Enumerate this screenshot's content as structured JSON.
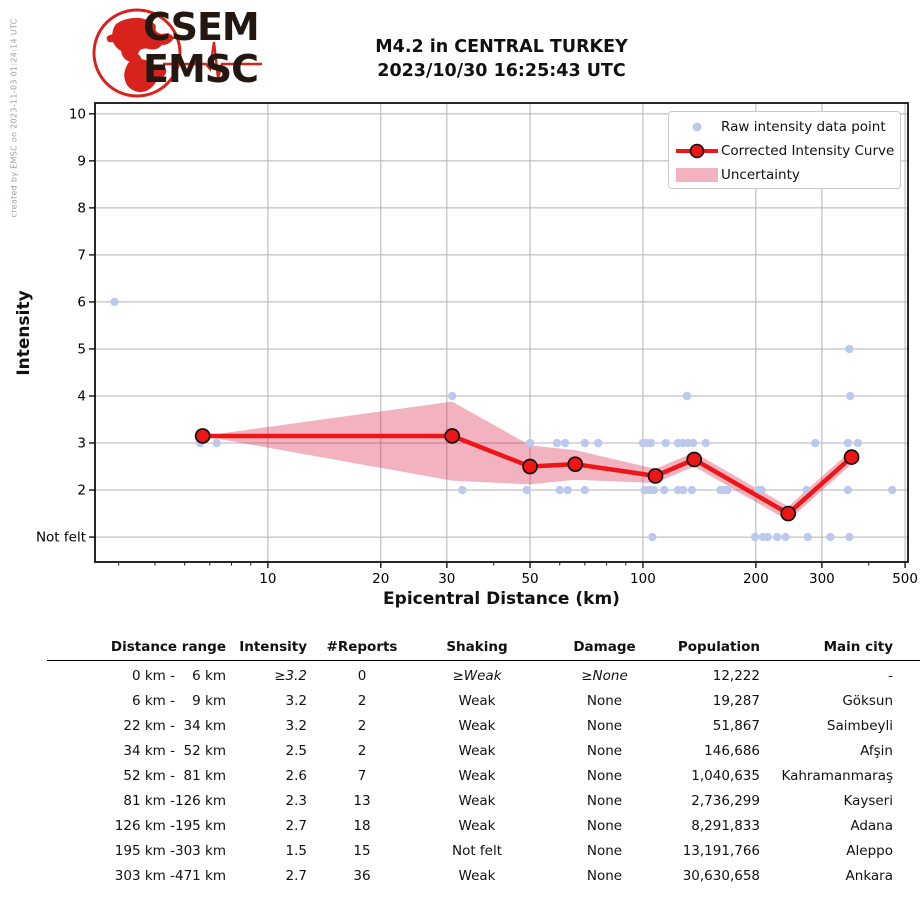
{
  "watermark": "created by EMSC on 2023-11-03 01:24:14 UTC",
  "logo": {
    "org1": "CSEM",
    "org2": "EMSC"
  },
  "title_line1": "M4.2 in CENTRAL TURKEY",
  "title_line2": "2023/10/30 16:25:43 UTC",
  "chart_data": {
    "type": "line",
    "title": "M4.2 in CENTRAL TURKEY 2023/10/30 16:25:43 UTC",
    "xlabel": "Epicentral Distance (km)",
    "ylabel": "Intensity",
    "x_scale": "log",
    "xlim": [
      3.46,
      509
    ],
    "ylim": [
      0.47,
      10.23
    ],
    "x_major_ticks": [
      10,
      20,
      30,
      50,
      100,
      200,
      300,
      500
    ],
    "x_minor_ticks": [
      4,
      5,
      6,
      7,
      8,
      9,
      40,
      60,
      70,
      80,
      90,
      400
    ],
    "y_ticks": [
      1,
      2,
      3,
      4,
      5,
      6,
      7,
      8,
      9,
      10
    ],
    "y_tick_labels": [
      "Not felt",
      "2",
      "3",
      "4",
      "5",
      "6",
      "7",
      "8",
      "9",
      "10"
    ],
    "grid": true,
    "legend_position": "upper right",
    "colors": {
      "raw": "#bdc9ec",
      "curve": "#ed1515",
      "curve_marker_edge": "#111111",
      "band": "rgba(220,20,60,0.33)",
      "grid": "#b3b3b3",
      "spine": "#111111"
    },
    "series": [
      {
        "name": "Raw intensity data point",
        "type": "scatter",
        "points": [
          [
            3.9,
            6
          ],
          [
            355,
            5
          ],
          [
            31,
            4
          ],
          [
            131,
            4
          ],
          [
            357,
            4
          ],
          [
            6.6,
            3
          ],
          [
            7.3,
            3
          ],
          [
            50,
            3
          ],
          [
            59,
            3
          ],
          [
            62,
            3
          ],
          [
            70,
            3
          ],
          [
            76,
            3
          ],
          [
            100,
            3
          ],
          [
            102,
            3
          ],
          [
            105,
            3
          ],
          [
            115,
            3
          ],
          [
            124,
            3
          ],
          [
            128,
            3
          ],
          [
            132,
            3
          ],
          [
            136,
            3
          ],
          [
            147,
            3
          ],
          [
            288,
            3
          ],
          [
            352,
            3
          ],
          [
            374,
            3
          ],
          [
            33,
            2
          ],
          [
            49,
            2
          ],
          [
            60,
            2
          ],
          [
            63,
            2
          ],
          [
            70,
            2
          ],
          [
            101,
            2
          ],
          [
            104,
            2
          ],
          [
            107,
            2
          ],
          [
            114,
            2
          ],
          [
            124,
            2
          ],
          [
            128,
            2
          ],
          [
            135,
            2
          ],
          [
            161,
            2
          ],
          [
            165,
            2
          ],
          [
            168,
            2
          ],
          [
            203,
            2
          ],
          [
            207,
            2
          ],
          [
            273,
            2
          ],
          [
            352,
            2
          ],
          [
            462,
            2
          ],
          [
            106,
            1
          ],
          [
            199,
            1
          ],
          [
            209,
            1
          ],
          [
            215,
            1
          ],
          [
            228,
            1
          ],
          [
            240,
            1
          ],
          [
            275,
            1
          ],
          [
            316,
            1
          ],
          [
            355,
            1
          ]
        ]
      },
      {
        "name": "Corrected Intensity Curve",
        "type": "line",
        "x": [
          6.7,
          31,
          50,
          66,
          108,
          137,
          244,
          360
        ],
        "y": [
          3.15,
          3.15,
          2.5,
          2.55,
          2.3,
          2.65,
          1.5,
          2.7
        ]
      },
      {
        "name": "Uncertainty",
        "type": "band",
        "x": [
          6.7,
          31,
          50,
          66,
          108,
          137,
          244,
          360
        ],
        "upper": [
          3.15,
          3.88,
          2.95,
          2.85,
          2.45,
          2.8,
          1.65,
          2.85
        ],
        "lower": [
          3.15,
          2.2,
          2.12,
          2.22,
          2.15,
          2.5,
          1.35,
          2.55
        ]
      }
    ]
  },
  "table": {
    "headers": [
      "Distance range",
      "Intensity",
      "#Reports",
      "Shaking",
      "Damage",
      "Population",
      "Main city"
    ],
    "rows": [
      {
        "cells": [
          "0 km -",
          "6 km",
          "≥3.2",
          "0",
          "≥Weak",
          "≥None",
          "12,222",
          "-"
        ],
        "em": true
      },
      {
        "cells": [
          "6 km -",
          "9 km",
          "3.2",
          "2",
          "Weak",
          "None",
          "19,287",
          "Göksun"
        ],
        "em": false
      },
      {
        "cells": [
          "22 km -",
          "34 km",
          "3.2",
          "2",
          "Weak",
          "None",
          "51,867",
          "Saimbeyli"
        ],
        "em": false
      },
      {
        "cells": [
          "34 km -",
          "52 km",
          "2.5",
          "2",
          "Weak",
          "None",
          "146,686",
          "Afşin"
        ],
        "em": false
      },
      {
        "cells": [
          "52 km -",
          "81 km",
          "2.6",
          "7",
          "Weak",
          "None",
          "1,040,635",
          "Kahramanmaraş"
        ],
        "em": false
      },
      {
        "cells": [
          "81 km -",
          "126 km",
          "2.3",
          "13",
          "Weak",
          "None",
          "2,736,299",
          "Kayseri"
        ],
        "em": false
      },
      {
        "cells": [
          "126 km -",
          "195 km",
          "2.7",
          "18",
          "Weak",
          "None",
          "8,291,833",
          "Adana"
        ],
        "em": false
      },
      {
        "cells": [
          "195 km -",
          "303 km",
          "1.5",
          "15",
          "Not felt",
          "None",
          "13,191,766",
          "Aleppo"
        ],
        "em": false
      },
      {
        "cells": [
          "303 km -",
          "471 km",
          "2.7",
          "36",
          "Weak",
          "None",
          "30,630,658",
          "Ankara"
        ],
        "em": false
      }
    ]
  }
}
